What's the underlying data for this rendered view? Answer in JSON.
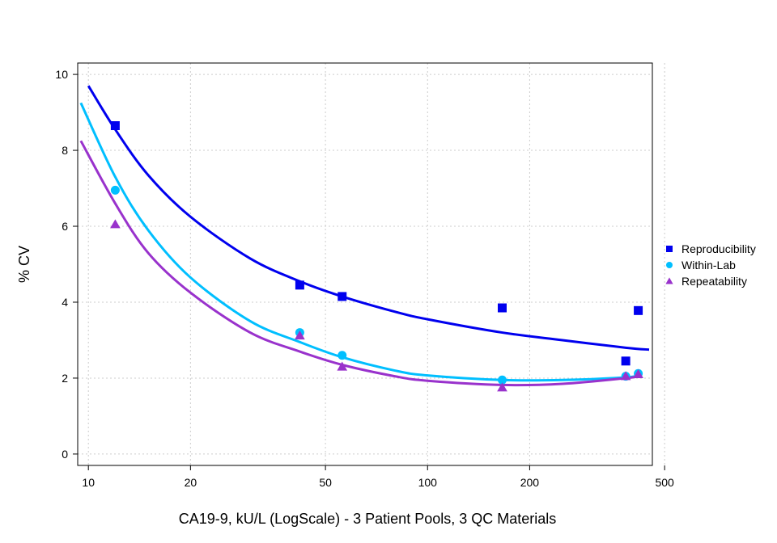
{
  "chart_data": {
    "type": "scatter",
    "title": "",
    "xlabel": "CA19-9, kU/L (LogScale) - 3 Patient Pools, 3 QC Materials",
    "ylabel": "% CV",
    "x_scale": "log",
    "xlim": [
      9.3,
      460
    ],
    "ylim": [
      -0.3,
      10.3
    ],
    "x_ticks": [
      10,
      20,
      50,
      100,
      200,
      500
    ],
    "y_ticks": [
      0,
      2,
      4,
      6,
      8,
      10
    ],
    "grid": true,
    "legend_position": "right",
    "series": [
      {
        "name": "Reproducibility",
        "color": "#0000ee",
        "marker": "square",
        "x": [
          12,
          42,
          56,
          166,
          384,
          418
        ],
        "y": [
          8.65,
          4.45,
          4.15,
          3.85,
          2.45,
          3.78
        ],
        "fit": {
          "x": [
            10,
            12,
            15,
            20,
            30,
            42,
            56,
            80,
            100,
            166,
            250,
            384,
            450
          ],
          "y": [
            9.7,
            8.55,
            7.35,
            6.25,
            5.15,
            4.55,
            4.15,
            3.75,
            3.55,
            3.2,
            3.0,
            2.8,
            2.75
          ]
        }
      },
      {
        "name": "Within-Lab",
        "color": "#00bfff",
        "marker": "circle",
        "x": [
          12,
          42,
          56,
          166,
          384,
          418
        ],
        "y": [
          6.95,
          3.2,
          2.6,
          1.95,
          2.05,
          2.12
        ],
        "fit": {
          "x": [
            9.5,
            12,
            15,
            20,
            30,
            42,
            56,
            80,
            100,
            166,
            250,
            384,
            420
          ],
          "y": [
            9.25,
            7.3,
            5.9,
            4.65,
            3.5,
            2.95,
            2.55,
            2.2,
            2.07,
            1.95,
            1.95,
            2.02,
            2.07
          ]
        }
      },
      {
        "name": "Repeatability",
        "color": "#9932cc",
        "marker": "triangle",
        "x": [
          12,
          42,
          56,
          166,
          384,
          418
        ],
        "y": [
          6.05,
          3.12,
          2.3,
          1.75,
          2.05,
          2.1
        ],
        "fit": {
          "x": [
            9.5,
            12,
            15,
            20,
            30,
            42,
            56,
            80,
            100,
            166,
            250,
            384,
            420
          ],
          "y": [
            8.25,
            6.6,
            5.3,
            4.25,
            3.2,
            2.7,
            2.35,
            2.05,
            1.93,
            1.82,
            1.85,
            2.0,
            2.05
          ]
        }
      }
    ]
  }
}
